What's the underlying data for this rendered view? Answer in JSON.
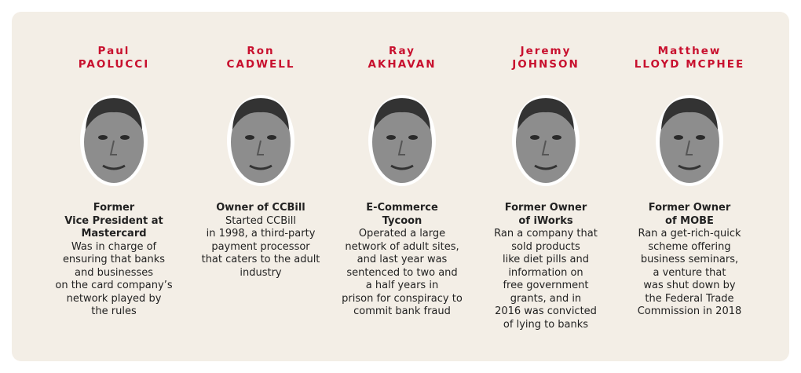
{
  "people": [
    {
      "first_name": "Paul",
      "last_name": "PAOLUCCI",
      "title_lines": [
        "Former",
        "Vice President at",
        "Mastercard"
      ],
      "description_lines": [
        "Was in charge of",
        "ensuring that banks",
        "and businesses",
        "on the card company’s",
        "network played by",
        "the rules"
      ]
    },
    {
      "first_name": "Ron",
      "last_name": "CADWELL",
      "title_lines": [
        "Owner of CCBill"
      ],
      "description_lines": [
        "Started CCBill",
        "in 1998, a third-party",
        "payment processor",
        "that caters to the adult",
        "industry"
      ]
    },
    {
      "first_name": "Ray",
      "last_name": "AKHAVAN",
      "title_lines": [
        "E-Commerce",
        "Tycoon"
      ],
      "description_lines": [
        "Operated a large",
        "network of adult sites,",
        "and last year was",
        "sentenced to two and",
        "a half years in",
        "prison for conspiracy to",
        "commit bank fraud"
      ]
    },
    {
      "first_name": "Jeremy",
      "last_name": "JOHNSON",
      "title_lines": [
        "Former Owner",
        "of iWorks"
      ],
      "description_lines": [
        "Ran a company that",
        "sold products",
        "like diet pills and",
        "information on",
        "free government",
        "grants, and in",
        "2016 was convicted",
        "of lying to banks"
      ]
    },
    {
      "first_name": "Matthew",
      "last_name": "LLOYD MCPHEE",
      "title_lines": [
        "Former Owner",
        "of MOBE"
      ],
      "description_lines": [
        "Ran a get-rich-quick",
        "scheme offering",
        "business seminars,",
        "a venture that",
        "was shut down by",
        "the Federal Trade",
        "Commission in 2018"
      ]
    }
  ]
}
